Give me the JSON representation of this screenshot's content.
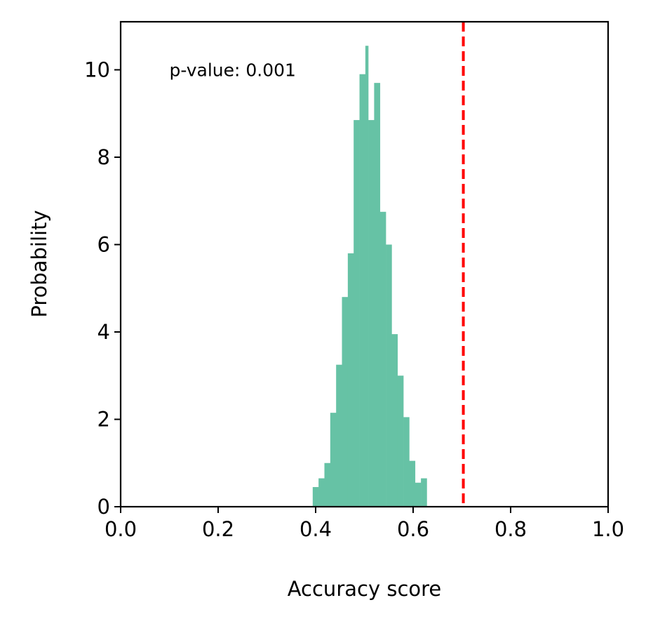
{
  "chart_data": {
    "type": "bar",
    "title": "",
    "xlabel": "Accuracy score",
    "ylabel": "Probability",
    "xlim": [
      0.0,
      1.0
    ],
    "ylim": [
      0,
      11.1
    ],
    "grid": false,
    "xticks": [
      {
        "value": 0.0,
        "label": "0.0"
      },
      {
        "value": 0.2,
        "label": "0.2"
      },
      {
        "value": 0.4,
        "label": "0.4"
      },
      {
        "value": 0.6,
        "label": "0.6"
      },
      {
        "value": 0.8,
        "label": "0.8"
      },
      {
        "value": 1.0,
        "label": "1.0"
      }
    ],
    "yticks": [
      {
        "value": 0,
        "label": "0"
      },
      {
        "value": 2,
        "label": "2"
      },
      {
        "value": 4,
        "label": "4"
      },
      {
        "value": 6,
        "label": "6"
      },
      {
        "value": 8,
        "label": "8"
      },
      {
        "value": 10,
        "label": "10"
      }
    ],
    "bar_color": "#66c2a5",
    "bins": [
      {
        "x0": 0.394,
        "x1": 0.406,
        "value": 0.45
      },
      {
        "x0": 0.406,
        "x1": 0.418,
        "value": 0.65
      },
      {
        "x0": 0.418,
        "x1": 0.43,
        "value": 1.0
      },
      {
        "x0": 0.43,
        "x1": 0.442,
        "value": 2.15
      },
      {
        "x0": 0.442,
        "x1": 0.454,
        "value": 3.25
      },
      {
        "x0": 0.454,
        "x1": 0.466,
        "value": 4.8
      },
      {
        "x0": 0.466,
        "x1": 0.478,
        "value": 5.8
      },
      {
        "x0": 0.478,
        "x1": 0.49,
        "value": 8.85
      },
      {
        "x0": 0.49,
        "x1": 0.502,
        "value": 9.9
      },
      {
        "x0": 0.502,
        "x1": 0.508,
        "value": 10.55
      },
      {
        "x0": 0.508,
        "x1": 0.52,
        "value": 8.85
      },
      {
        "x0": 0.52,
        "x1": 0.532,
        "value": 9.7
      },
      {
        "x0": 0.532,
        "x1": 0.544,
        "value": 6.75
      },
      {
        "x0": 0.544,
        "x1": 0.556,
        "value": 6.0
      },
      {
        "x0": 0.556,
        "x1": 0.568,
        "value": 3.95
      },
      {
        "x0": 0.568,
        "x1": 0.58,
        "value": 3.0
      },
      {
        "x0": 0.58,
        "x1": 0.592,
        "value": 2.05
      },
      {
        "x0": 0.592,
        "x1": 0.604,
        "value": 1.05
      },
      {
        "x0": 0.604,
        "x1": 0.616,
        "value": 0.55
      },
      {
        "x0": 0.616,
        "x1": 0.628,
        "value": 0.65
      }
    ],
    "reference_line": {
      "x": 0.703,
      "color": "#ff0000",
      "style": "dashed"
    },
    "annotation": {
      "text": "p-value: 0.001",
      "x": 0.1,
      "y": 10.0
    }
  }
}
